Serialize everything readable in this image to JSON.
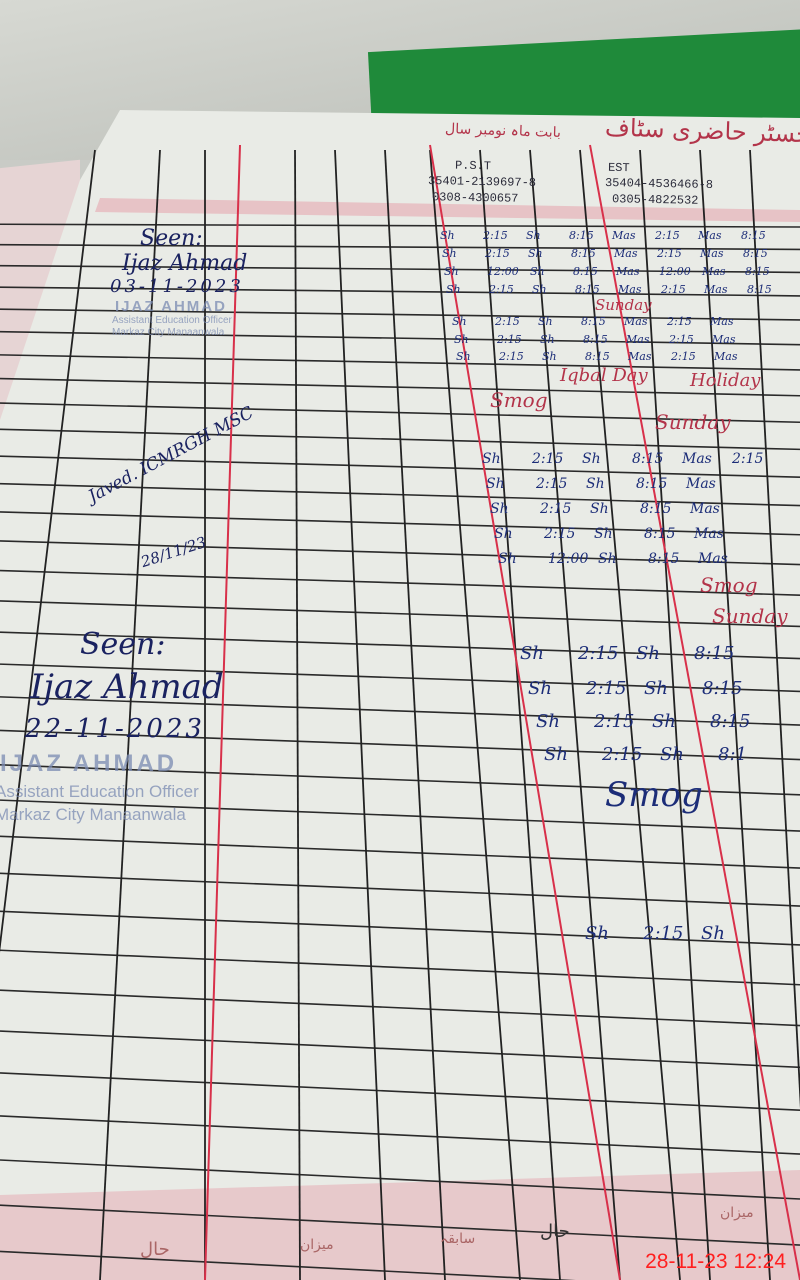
{
  "register": {
    "title": "رجسٹر حاضری سٹاف",
    "month_label": "بابت ماہ نومبر سال",
    "footer_labels": [
      "حال",
      "سابقہ",
      "میزان",
      "حال",
      "میزان"
    ]
  },
  "staff": [
    {
      "designation": "P.S.T",
      "cnic": "35401-2139697-8",
      "phone": "0308-4300657"
    },
    {
      "designation": "EST",
      "cnic": "35404-4536466-8",
      "phone": "0305-4822532"
    }
  ],
  "visits": [
    {
      "seen": "Seen:",
      "name": "Ijaz Ahmad",
      "date": "03-11-2023"
    },
    {
      "name": "Javed. ICMRGH MSC",
      "date": "28/11/23"
    },
    {
      "seen": "Seen:",
      "name": "Ijaz Ahmad",
      "date": "22-11-2023"
    }
  ],
  "stamp": {
    "name": "IJAZ AHMAD",
    "title": "Assistant Education Officer",
    "place": "Markaz City Manaanwala"
  },
  "entries": [
    {
      "row": 0,
      "cells": [
        "Sh",
        "2:15",
        "Sh",
        "8:15",
        "Mas",
        "2:15",
        "Mas",
        "8:15"
      ]
    },
    {
      "row": 1,
      "cells": [
        "Sh",
        "2:15",
        "Sh",
        "8:15",
        "Mas",
        "2:15",
        "Mas",
        "8:15"
      ]
    },
    {
      "row": 2,
      "cells": [
        "Sh",
        "12:00",
        "Sh",
        "8:15",
        "Mas",
        "12:00",
        "Mas",
        "8:15"
      ]
    },
    {
      "row": 3,
      "cells": [
        "Sh",
        "2:15",
        "Sh",
        "8:15",
        "Mas",
        "2:15",
        "Mas",
        "8:15"
      ]
    },
    {
      "row": 5,
      "cells": [
        "Sh",
        "2:15",
        "Sh",
        "8:15",
        "Mas",
        "2:15",
        "Mas"
      ]
    },
    {
      "row": 6,
      "cells": [
        "Sh",
        "2:15",
        "Sh",
        "8:15",
        "Mas",
        "2:15",
        "Mas"
      ]
    },
    {
      "row": 7,
      "cells": [
        "Sh",
        "2:15",
        "Sh",
        "8:15",
        "Mas",
        "2:15",
        "Mas"
      ]
    },
    {
      "row": 11,
      "cells": [
        "Sh",
        "2:15",
        "Sh",
        "8:15",
        "Mas",
        "2:15"
      ]
    },
    {
      "row": 12,
      "cells": [
        "Sh",
        "2:15",
        "Sh",
        "8:15",
        "Mas"
      ]
    },
    {
      "row": 13,
      "cells": [
        "Sh",
        "2:15",
        "Sh",
        "8:15",
        "Mas"
      ]
    },
    {
      "row": 14,
      "cells": [
        "Sh",
        "2:15",
        "Sh",
        "8:15",
        "Mas"
      ]
    },
    {
      "row": 15,
      "cells": [
        "Sh",
        "12:00",
        "Sh",
        "8:15",
        "Mas"
      ]
    },
    {
      "row": 18,
      "cells": [
        "Sh",
        "2:15",
        "Sh",
        "8:15"
      ]
    },
    {
      "row": 19,
      "cells": [
        "Sh",
        "2:15",
        "Sh",
        "8:15"
      ]
    },
    {
      "row": 20,
      "cells": [
        "Sh",
        "2:15",
        "Sh",
        "8:15"
      ]
    },
    {
      "row": 21,
      "cells": [
        "Sh",
        "2:15",
        "Sh",
        "8:1"
      ]
    },
    {
      "row": 25,
      "cells": [
        "Sh",
        "2:15",
        "Sh"
      ]
    }
  ],
  "notes": {
    "sunday_1": "Sunday",
    "iqbal_day": "Iqbal Day",
    "holiday": "Holiday",
    "smog_1": "Smog",
    "sunday_2": "Sunday",
    "smog_2": "Smog",
    "sunday_3": "Sunday",
    "smog_3": "Smog"
  },
  "camera_timestamp": "28-11-23  12:24"
}
